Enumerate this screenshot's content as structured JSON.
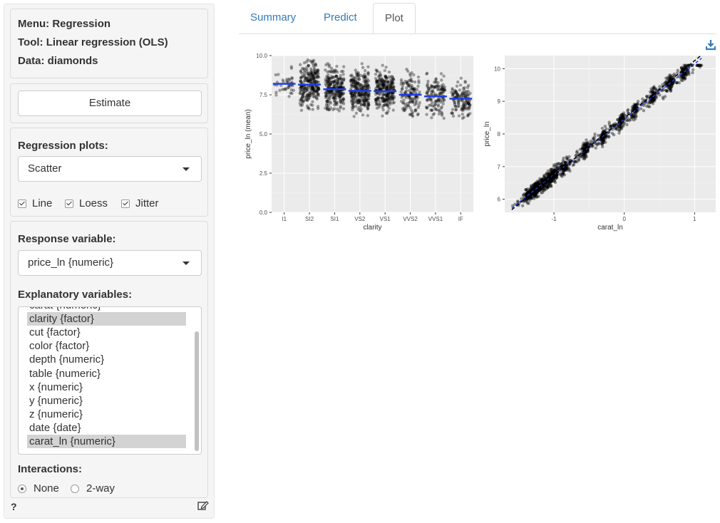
{
  "meta": {
    "menu": "Menu: Regression",
    "tool": "Tool: Linear regression (OLS)",
    "data": "Data: diamonds"
  },
  "estimate_label": "Estimate",
  "reg_plots": {
    "label": "Regression plots:",
    "selected": "Scatter"
  },
  "checks": [
    {
      "label": "Line",
      "checked": true
    },
    {
      "label": "Loess",
      "checked": true
    },
    {
      "label": "Jitter",
      "checked": true
    }
  ],
  "response": {
    "label": "Response variable:",
    "selected": "price_ln {numeric}"
  },
  "explanatory": {
    "label": "Explanatory variables:",
    "options": [
      {
        "label": "carat {numeric}",
        "selected": false
      },
      {
        "label": "clarity {factor}",
        "selected": true
      },
      {
        "label": "cut {factor}",
        "selected": false
      },
      {
        "label": "color {factor}",
        "selected": false
      },
      {
        "label": "depth {numeric}",
        "selected": false
      },
      {
        "label": "table {numeric}",
        "selected": false
      },
      {
        "label": "x {numeric}",
        "selected": false
      },
      {
        "label": "y {numeric}",
        "selected": false
      },
      {
        "label": "z {numeric}",
        "selected": false
      },
      {
        "label": "date {date}",
        "selected": false
      },
      {
        "label": "carat_ln {numeric}",
        "selected": true
      }
    ]
  },
  "interactions": {
    "label": "Interactions:",
    "options": [
      "None",
      "2-way"
    ],
    "selected": "None"
  },
  "help_label": "?",
  "tabs": [
    "Summary",
    "Predict",
    "Plot"
  ],
  "active_tab": "Plot",
  "colors": {
    "link": "#337ab7",
    "panel_bg": "#ebebeb",
    "line_blue": "#1f3ee8"
  },
  "chart_data": [
    {
      "type": "scatter",
      "xlabel": "clarity",
      "ylabel": "price_ln (mean)",
      "categories": [
        "I1",
        "SI2",
        "SI1",
        "VS2",
        "VS1",
        "VVS2",
        "VVS1",
        "IF"
      ],
      "means": [
        8.2,
        8.15,
        7.85,
        7.75,
        7.72,
        7.5,
        7.4,
        7.25
      ],
      "point_ranges": [
        [
          7.0,
          9.5
        ],
        [
          6.0,
          9.8
        ],
        [
          6.0,
          9.8
        ],
        [
          6.0,
          9.8
        ],
        [
          6.0,
          9.8
        ],
        [
          6.0,
          9.8
        ],
        [
          6.0,
          9.6
        ],
        [
          6.0,
          9.5
        ]
      ],
      "yticks": [
        "0.0",
        "2.5",
        "5.0",
        "7.5",
        "10.0"
      ],
      "ylim": [
        0,
        10
      ]
    },
    {
      "type": "scatter",
      "xlabel": "carat_ln",
      "ylabel": "price_ln",
      "xticks": [
        "-1",
        "0",
        "1"
      ],
      "yticks": [
        "6",
        "7",
        "8",
        "9",
        "10"
      ],
      "xlim": [
        -1.7,
        1.3
      ],
      "ylim": [
        5.6,
        10.4
      ],
      "fit_line": {
        "intercept": 8.45,
        "slope": 1.7
      }
    }
  ]
}
